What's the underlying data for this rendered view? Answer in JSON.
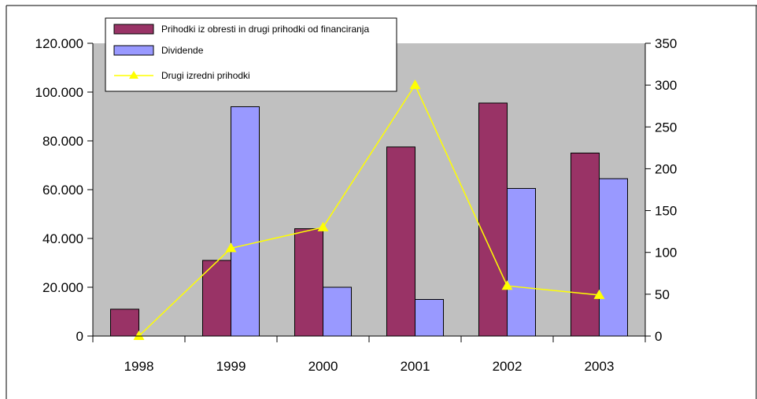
{
  "chart_data": {
    "type": "bar",
    "title": "",
    "xlabel": "",
    "ylabel": "",
    "categories": [
      "1998",
      "1999",
      "2000",
      "2001",
      "2002",
      "2003"
    ],
    "series": [
      {
        "name": "Prihodki iz obresti in drugi prihodki od financiranja",
        "type": "bar",
        "axis": "left",
        "color": "#993366",
        "values": [
          11000,
          31000,
          44000,
          77500,
          95500,
          75000
        ]
      },
      {
        "name": "Dividende",
        "type": "bar",
        "axis": "left",
        "color": "#9999ff",
        "values": [
          null,
          94000,
          20000,
          15000,
          60500,
          64500
        ]
      },
      {
        "name": "Drugi izredni prihodki",
        "type": "line",
        "axis": "right",
        "color": "#ffff00",
        "values": [
          0,
          105,
          130,
          300,
          60,
          49
        ]
      }
    ],
    "y_left": {
      "ylim": [
        0,
        120000
      ],
      "ticks": [
        "0",
        "20.000",
        "40.000",
        "60.000",
        "80.000",
        "100.000",
        "120.000"
      ]
    },
    "y_right": {
      "ylim": [
        0,
        350
      ],
      "ticks": [
        "0",
        "50",
        "100",
        "150",
        "200",
        "250",
        "300",
        "350"
      ]
    },
    "grid": false,
    "plot_background": "#c0c0c0",
    "legend_position": "top-left"
  }
}
